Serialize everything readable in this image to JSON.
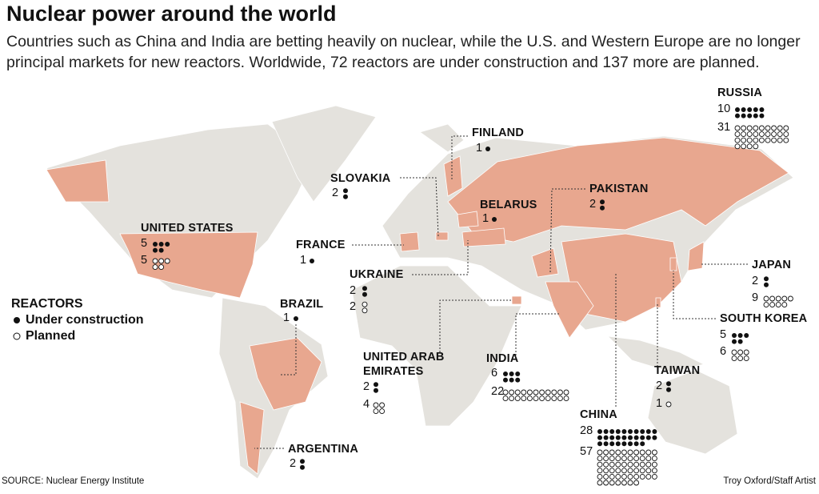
{
  "title": "Nuclear power around the world",
  "subtitle": "Countries such as China and India are betting heavily on nuclear, while the U.S. and Western Europe are no longer principal markets for new reactors. Worldwide, 72 reactors are under construction and 137 more are planned.",
  "legend": {
    "title": "REACTORS",
    "under_construction": "Under construction",
    "planned": "Planned"
  },
  "countries": [
    {
      "name": "RUSSIA",
      "under_construction": 10,
      "planned": 31
    },
    {
      "name": "FINLAND",
      "under_construction": 1
    },
    {
      "name": "SLOVAKIA",
      "under_construction": 2
    },
    {
      "name": "BELARUS",
      "under_construction": 1
    },
    {
      "name": "PAKISTAN",
      "under_construction": 2
    },
    {
      "name": "UNITED STATES",
      "under_construction": 5,
      "planned": 5
    },
    {
      "name": "FRANCE",
      "under_construction": 1
    },
    {
      "name": "UKRAINE",
      "under_construction": 2,
      "planned": 2
    },
    {
      "name": "BRAZIL",
      "under_construction": 1
    },
    {
      "name": "JAPAN",
      "under_construction": 2,
      "planned": 9
    },
    {
      "name": "SOUTH KOREA",
      "under_construction": 5,
      "planned": 6
    },
    {
      "name": "UNITED ARAB EMIRATES",
      "under_construction": 2,
      "planned": 4
    },
    {
      "name": "INDIA",
      "under_construction": 6,
      "planned": 22
    },
    {
      "name": "TAIWAN",
      "under_construction": 2,
      "planned": 1
    },
    {
      "name": "CHINA",
      "under_construction": 28,
      "planned": 57
    },
    {
      "name": "ARGENTINA",
      "under_construction": 2
    }
  ],
  "source": "SOURCE: Nuclear Energy Institute",
  "credit": "Troy Oxford/Staff Artist"
}
